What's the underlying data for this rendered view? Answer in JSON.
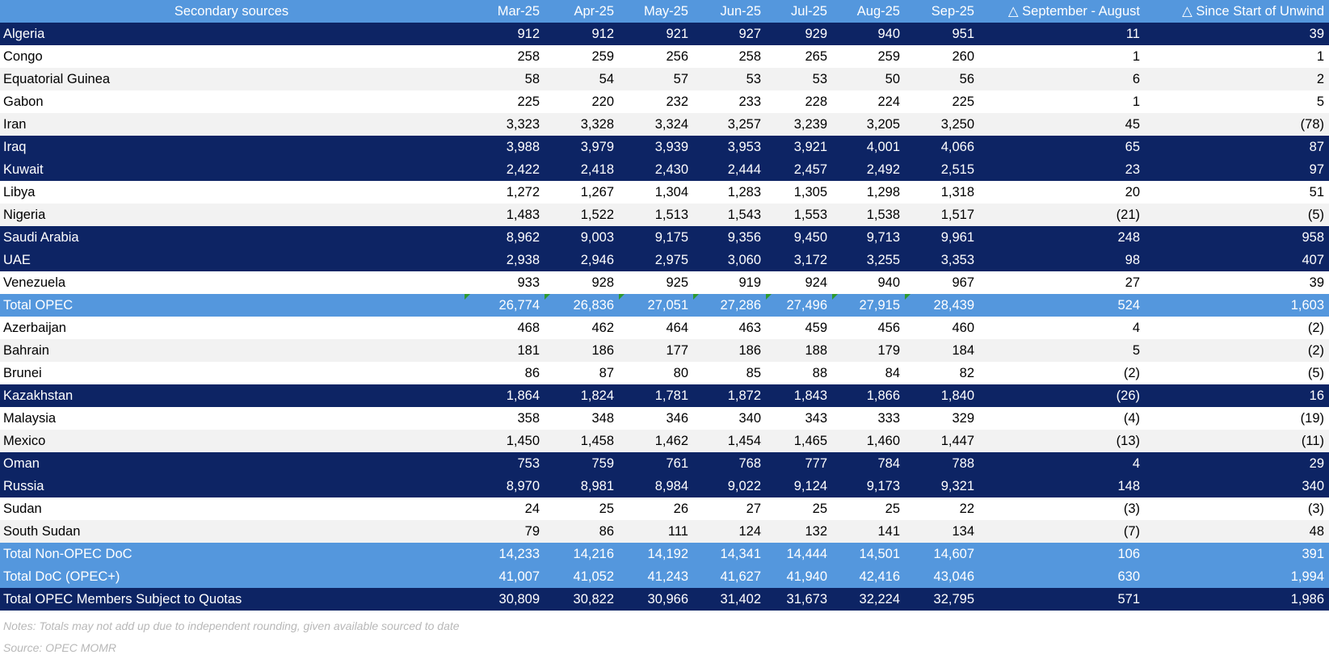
{
  "header": [
    "Secondary sources",
    "Mar-25",
    "Apr-25",
    "May-25",
    "Jun-25",
    "Jul-25",
    "Aug-25",
    "Sep-25",
    "△ September - August",
    "△ Since Start of Unwind"
  ],
  "rows": [
    {
      "style": "navy",
      "cells": [
        "Algeria",
        "912",
        "912",
        "921",
        "927",
        "929",
        "940",
        "951",
        "11",
        "39"
      ]
    },
    {
      "style": "white",
      "cells": [
        "Congo",
        "258",
        "259",
        "256",
        "258",
        "265",
        "259",
        "260",
        "1",
        "1"
      ]
    },
    {
      "style": "grey",
      "cells": [
        "Equatorial Guinea",
        "58",
        "54",
        "57",
        "53",
        "53",
        "50",
        "56",
        "6",
        "2"
      ]
    },
    {
      "style": "white",
      "cells": [
        "Gabon",
        "225",
        "220",
        "232",
        "233",
        "228",
        "224",
        "225",
        "1",
        "5"
      ]
    },
    {
      "style": "grey",
      "cells": [
        "Iran",
        "3,323",
        "3,328",
        "3,324",
        "3,257",
        "3,239",
        "3,205",
        "3,250",
        "45",
        "(78)"
      ]
    },
    {
      "style": "navy",
      "cells": [
        "Iraq",
        "3,988",
        "3,979",
        "3,939",
        "3,953",
        "3,921",
        "4,001",
        "4,066",
        "65",
        "87"
      ]
    },
    {
      "style": "navy",
      "cells": [
        "Kuwait",
        "2,422",
        "2,418",
        "2,430",
        "2,444",
        "2,457",
        "2,492",
        "2,515",
        "23",
        "97"
      ]
    },
    {
      "style": "white",
      "cells": [
        "Libya",
        "1,272",
        "1,267",
        "1,304",
        "1,283",
        "1,305",
        "1,298",
        "1,318",
        "20",
        "51"
      ]
    },
    {
      "style": "grey",
      "cells": [
        "Nigeria",
        "1,483",
        "1,522",
        "1,513",
        "1,543",
        "1,553",
        "1,538",
        "1,517",
        "(21)",
        "(5)"
      ]
    },
    {
      "style": "navy",
      "cells": [
        "Saudi Arabia",
        "8,962",
        "9,003",
        "9,175",
        "9,356",
        "9,450",
        "9,713",
        "9,961",
        "248",
        "958"
      ]
    },
    {
      "style": "navy",
      "cells": [
        "UAE",
        "2,938",
        "2,946",
        "2,975",
        "3,060",
        "3,172",
        "3,255",
        "3,353",
        "98",
        "407"
      ]
    },
    {
      "style": "white",
      "cells": [
        "Venezuela",
        "933",
        "928",
        "925",
        "919",
        "924",
        "940",
        "967",
        "27",
        "39"
      ]
    },
    {
      "style": "light",
      "flags": true,
      "cells": [
        "Total OPEC",
        "26,774",
        "26,836",
        "27,051",
        "27,286",
        "27,496",
        "27,915",
        "28,439",
        "524",
        "1,603"
      ]
    },
    {
      "style": "white",
      "cells": [
        "Azerbaijan",
        "468",
        "462",
        "464",
        "463",
        "459",
        "456",
        "460",
        "4",
        "(2)"
      ]
    },
    {
      "style": "grey",
      "cells": [
        "Bahrain",
        "181",
        "186",
        "177",
        "186",
        "188",
        "179",
        "184",
        "5",
        "(2)"
      ]
    },
    {
      "style": "white",
      "cells": [
        "Brunei",
        "86",
        "87",
        "80",
        "85",
        "88",
        "84",
        "82",
        "(2)",
        "(5)"
      ]
    },
    {
      "style": "navy",
      "cells": [
        "Kazakhstan",
        "1,864",
        "1,824",
        "1,781",
        "1,872",
        "1,843",
        "1,866",
        "1,840",
        "(26)",
        "16"
      ]
    },
    {
      "style": "white",
      "cells": [
        "Malaysia",
        "358",
        "348",
        "346",
        "340",
        "343",
        "333",
        "329",
        "(4)",
        "(19)"
      ]
    },
    {
      "style": "grey",
      "cells": [
        "Mexico",
        "1,450",
        "1,458",
        "1,462",
        "1,454",
        "1,465",
        "1,460",
        "1,447",
        "(13)",
        "(11)"
      ]
    },
    {
      "style": "navy",
      "cells": [
        "Oman",
        "753",
        "759",
        "761",
        "768",
        "777",
        "784",
        "788",
        "4",
        "29"
      ]
    },
    {
      "style": "navy",
      "cells": [
        "Russia",
        "8,970",
        "8,981",
        "8,984",
        "9,022",
        "9,124",
        "9,173",
        "9,321",
        "148",
        "340"
      ]
    },
    {
      "style": "white",
      "cells": [
        "Sudan",
        "24",
        "25",
        "26",
        "27",
        "25",
        "25",
        "22",
        "(3)",
        "(3)"
      ]
    },
    {
      "style": "grey",
      "cells": [
        "South Sudan",
        "79",
        "86",
        "111",
        "124",
        "132",
        "141",
        "134",
        "(7)",
        "48"
      ]
    },
    {
      "style": "light",
      "cells": [
        "Total Non-OPEC DoC",
        "14,233",
        "14,216",
        "14,192",
        "14,341",
        "14,444",
        "14,501",
        "14,607",
        "106",
        "391"
      ]
    },
    {
      "style": "light",
      "cells": [
        "Total DoC (OPEC+)",
        "41,007",
        "41,052",
        "41,243",
        "41,627",
        "41,940",
        "42,416",
        "43,046",
        "630",
        "1,994"
      ]
    },
    {
      "style": "navy",
      "cells": [
        "Total OPEC Members Subject to Quotas",
        "30,809",
        "30,822",
        "30,966",
        "31,402",
        "31,673",
        "32,224",
        "32,795",
        "571",
        "1,986"
      ]
    }
  ],
  "notes": "Notes: Totals may not add up due to independent rounding, given available sourced to date",
  "source": "Source: OPEC MOMR"
}
